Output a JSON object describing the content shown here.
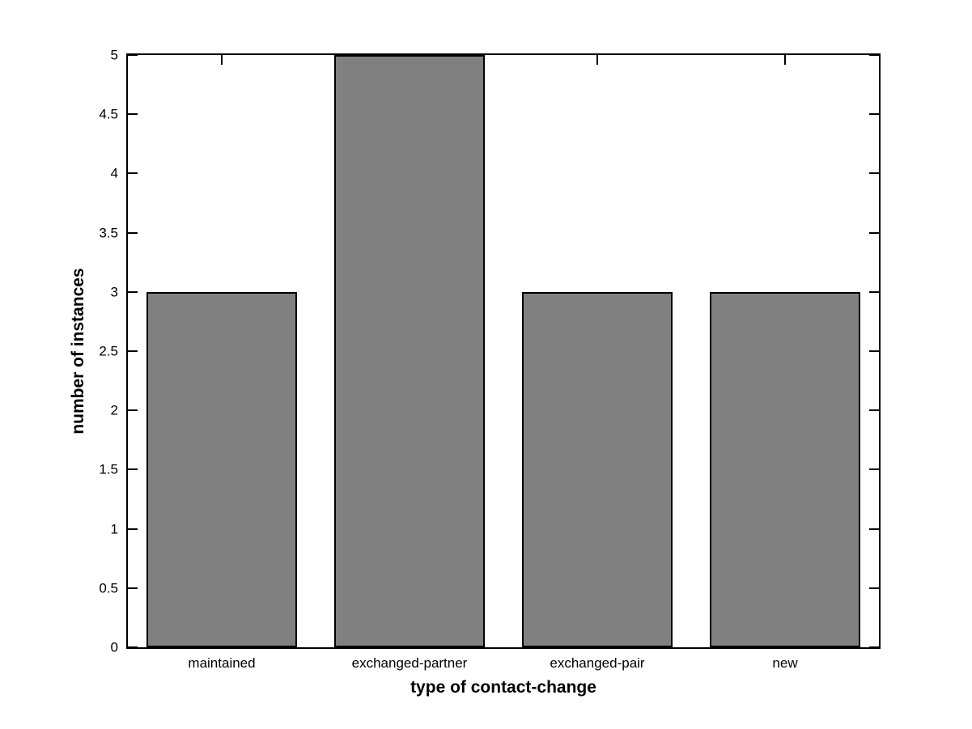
{
  "figure": {
    "background": "#ffffff"
  },
  "chart_data": {
    "type": "bar",
    "categories": [
      "maintained",
      "exchanged-partner",
      "exchanged-pair",
      "new"
    ],
    "values": [
      3,
      5,
      3,
      3
    ],
    "title": "",
    "xlabel": "type of contact-change",
    "ylabel": "number of instances",
    "ylim": [
      0,
      5
    ],
    "yticks": [
      0,
      0.5,
      1,
      1.5,
      2,
      2.5,
      3,
      3.5,
      4,
      4.5,
      5
    ],
    "ytick_labels": [
      "0",
      "0.5",
      "1",
      "1.5",
      "2",
      "2.5",
      "3",
      "3.5",
      "4",
      "4.5",
      "5"
    ],
    "bar_width_fraction": 0.8,
    "bar_fill": "#808080",
    "bar_edge": "#000000",
    "axis_color": "#000000",
    "text_color": "#000000",
    "grid": false,
    "legend": null,
    "box": true,
    "ticks_mirrored": true
  }
}
